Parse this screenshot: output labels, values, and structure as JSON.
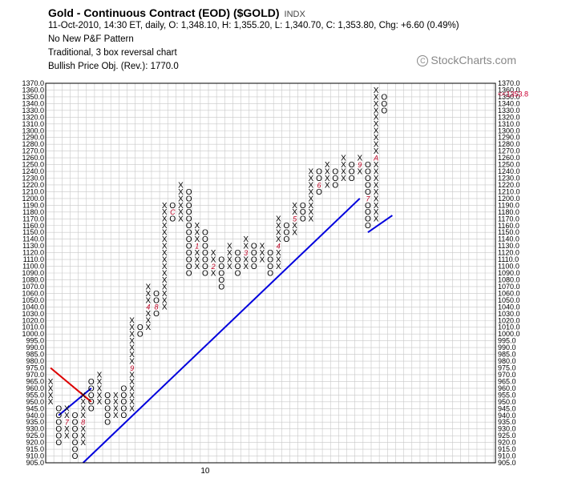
{
  "header": {
    "title": "Gold - Continuous Contract (EOD) ($GOLD)",
    "exchange": "INDX",
    "ohlc_line": "11-Oct-2010, 14:30 ET, daily, O: 1,348.10, H: 1,355.20, L: 1,340.70, C: 1,353.80, Chg: +6.60 (0.49%)",
    "pattern_line": "No New P&F Pattern",
    "method_line": "Traditional, 3 box reversal chart",
    "objective_line": "Bullish Price Obj. (Rev.): 1770.0",
    "watermark": "StockCharts.com"
  },
  "chart_data": {
    "type": "point-and-figure",
    "ylim": [
      905,
      1370
    ],
    "box_size_steps": [
      [
        905,
        1000,
        5
      ],
      [
        1000,
        1370,
        10
      ]
    ],
    "reversal": 3,
    "x_tick_labels": [
      {
        "column": 19,
        "label": "10"
      }
    ],
    "last_price_label": "<<1353.8",
    "last_price": 1353.8,
    "columns": [
      {
        "type": "X",
        "low": 950,
        "high": 965,
        "label": null
      },
      {
        "type": "O",
        "low": 920,
        "high": 945,
        "label": null
      },
      {
        "type": "X",
        "low": 925,
        "high": 945,
        "label": "7"
      },
      {
        "type": "O",
        "low": 910,
        "high": 940,
        "label": null
      },
      {
        "type": "X",
        "low": 920,
        "high": 955,
        "label": "8"
      },
      {
        "type": "O",
        "low": 945,
        "high": 965,
        "label": null
      },
      {
        "type": "X",
        "low": 950,
        "high": 970,
        "label": null
      },
      {
        "type": "O",
        "low": 935,
        "high": 955,
        "label": null
      },
      {
        "type": "X",
        "low": 940,
        "high": 955,
        "label": null
      },
      {
        "type": "O",
        "low": 940,
        "high": 960,
        "label": null
      },
      {
        "type": "X",
        "low": 945,
        "high": 1020,
        "label": "9"
      },
      {
        "type": "O",
        "low": 1000,
        "high": 1010,
        "label": null
      },
      {
        "type": "X",
        "low": 1010,
        "high": 1070,
        "label": "4"
      },
      {
        "type": "O",
        "low": 1030,
        "high": 1060,
        "label": "8"
      },
      {
        "type": "X",
        "low": 1040,
        "high": 1190,
        "label": null
      },
      {
        "type": "O",
        "low": 1170,
        "high": 1190,
        "label": "C"
      },
      {
        "type": "X",
        "low": 1170,
        "high": 1220,
        "label": null
      },
      {
        "type": "O",
        "low": 1090,
        "high": 1210,
        "label": null
      },
      {
        "type": "X",
        "low": 1100,
        "high": 1160,
        "label": "1"
      },
      {
        "type": "O",
        "low": 1090,
        "high": 1150,
        "label": null
      },
      {
        "type": "X",
        "low": 1090,
        "high": 1120,
        "label": "2"
      },
      {
        "type": "O",
        "low": 1070,
        "high": 1110,
        "label": null
      },
      {
        "type": "X",
        "low": 1100,
        "high": 1130,
        "label": null
      },
      {
        "type": "O",
        "low": 1090,
        "high": 1120,
        "label": null
      },
      {
        "type": "X",
        "low": 1100,
        "high": 1140,
        "label": "3"
      },
      {
        "type": "O",
        "low": 1100,
        "high": 1130,
        "label": null
      },
      {
        "type": "X",
        "low": 1110,
        "high": 1130,
        "label": null
      },
      {
        "type": "O",
        "low": 1090,
        "high": 1120,
        "label": null
      },
      {
        "type": "X",
        "low": 1100,
        "high": 1170,
        "label": "4"
      },
      {
        "type": "O",
        "low": 1140,
        "high": 1160,
        "label": null
      },
      {
        "type": "X",
        "low": 1150,
        "high": 1190,
        "label": "5"
      },
      {
        "type": "O",
        "low": 1170,
        "high": 1190,
        "label": null
      },
      {
        "type": "X",
        "low": 1170,
        "high": 1240,
        "label": null
      },
      {
        "type": "O",
        "low": 1210,
        "high": 1240,
        "label": "6"
      },
      {
        "type": "X",
        "low": 1220,
        "high": 1250,
        "label": null
      },
      {
        "type": "O",
        "low": 1220,
        "high": 1240,
        "label": null
      },
      {
        "type": "X",
        "low": 1230,
        "high": 1260,
        "label": null
      },
      {
        "type": "O",
        "low": 1230,
        "high": 1250,
        "label": null
      },
      {
        "type": "X",
        "low": 1240,
        "high": 1260,
        "label": "9"
      },
      {
        "type": "O",
        "low": 1160,
        "high": 1250,
        "label": "7"
      },
      {
        "type": "X",
        "low": 1170,
        "high": 1360,
        "label": "A"
      },
      {
        "type": "O",
        "low": 1330,
        "high": 1350,
        "label": null
      }
    ],
    "trend_lines": [
      {
        "kind": "bullish-support",
        "color": "#0000dd",
        "from": {
          "column": 1,
          "price": 940
        },
        "to": {
          "column": 5,
          "price": 960
        }
      },
      {
        "kind": "bullish-support",
        "color": "#0000dd",
        "from": {
          "column": 4,
          "price": 905
        },
        "to": {
          "column": 38,
          "price": 1200
        }
      },
      {
        "kind": "bearish-resistance",
        "color": "#dd0000",
        "from": {
          "column": 0,
          "price": 975
        },
        "to": {
          "column": 5,
          "price": 950
        }
      },
      {
        "kind": "bullish-support",
        "color": "#0000dd",
        "from": {
          "column": 39,
          "price": 1150
        },
        "to": {
          "column": 42,
          "price": 1175
        }
      }
    ],
    "colors": {
      "x_mark": "#000000",
      "o_mark": "#000000",
      "month_label": "#bb0022",
      "grid": "#c8c8c8",
      "price_label": "#000000",
      "last_price": "#cc0033"
    }
  }
}
